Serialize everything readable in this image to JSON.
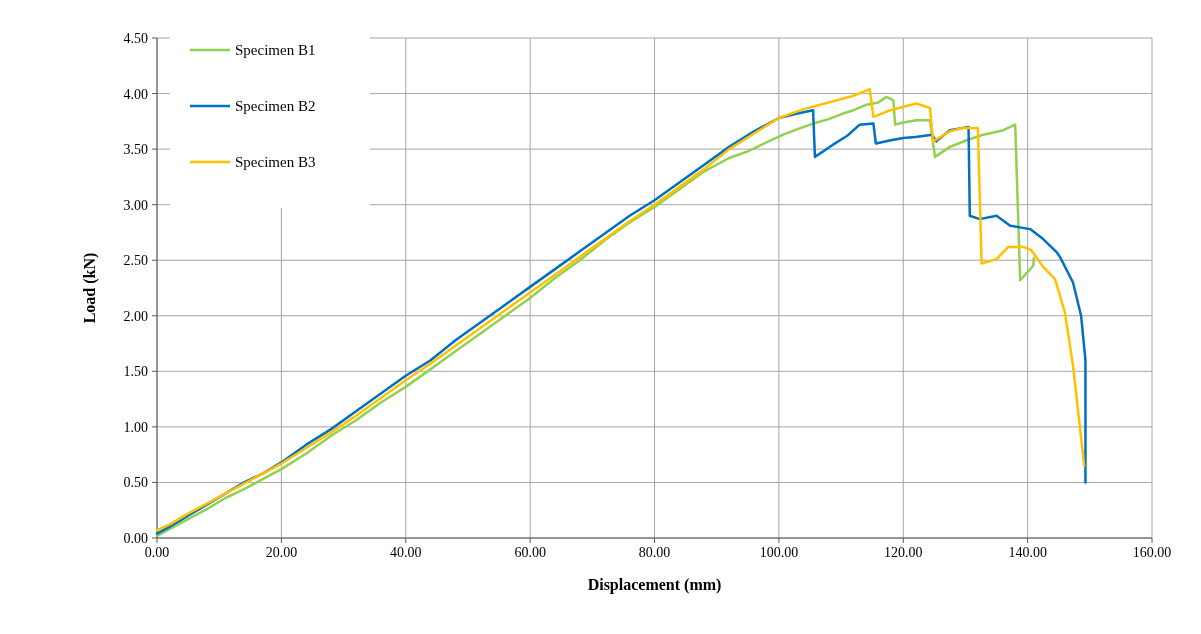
{
  "chart_data": {
    "type": "line",
    "xlabel": "Displacement (mm)",
    "ylabel": "Load (kN)",
    "xlim": [
      0,
      160
    ],
    "ylim": [
      0,
      4.5
    ],
    "xticks": [
      {
        "value": 0,
        "label": "0.00"
      },
      {
        "value": 20,
        "label": "20.00"
      },
      {
        "value": 40,
        "label": "40.00"
      },
      {
        "value": 60,
        "label": "60.00"
      },
      {
        "value": 80,
        "label": "80.00"
      },
      {
        "value": 100,
        "label": "100.00"
      },
      {
        "value": 120,
        "label": "120.00"
      },
      {
        "value": 140,
        "label": "140.00"
      },
      {
        "value": 160,
        "label": "160.00"
      }
    ],
    "yticks": [
      {
        "value": 0,
        "label": "0.00"
      },
      {
        "value": 0.5,
        "label": "0.50"
      },
      {
        "value": 1,
        "label": "1.00"
      },
      {
        "value": 1.5,
        "label": "1.50"
      },
      {
        "value": 2,
        "label": "2.00"
      },
      {
        "value": 2.5,
        "label": "2.50"
      },
      {
        "value": 3,
        "label": "3.00"
      },
      {
        "value": 3.5,
        "label": "3.50"
      },
      {
        "value": 4,
        "label": "4.00"
      },
      {
        "value": 4.5,
        "label": "4.50"
      }
    ],
    "grid": true,
    "legend": "top left",
    "marker": "none",
    "line_style": "solid",
    "series": [
      {
        "name": "Specimen B1",
        "color": "#92d050",
        "x": [
          0,
          2,
          5,
          8,
          11,
          14,
          17,
          20,
          24,
          28,
          32,
          36,
          40,
          44,
          48,
          52,
          56,
          60,
          64,
          68,
          72,
          76,
          80,
          84,
          88,
          92,
          95,
          98,
          100.7,
          103,
          105.5,
          108,
          110.3,
          112,
          114.1,
          116,
          117.3,
          118.4,
          118.7,
          120,
          122.1,
          124.3,
          125.1,
          127.5,
          130.2,
          132.9,
          136.1,
          138,
          138.8,
          140.9,
          141
        ],
        "values": [
          0.02,
          0.08,
          0.17,
          0.26,
          0.36,
          0.44,
          0.53,
          0.62,
          0.76,
          0.92,
          1.06,
          1.22,
          1.36,
          1.52,
          1.68,
          1.84,
          2.0,
          2.16,
          2.34,
          2.5,
          2.68,
          2.84,
          2.98,
          3.14,
          3.3,
          3.42,
          3.48,
          3.56,
          3.63,
          3.68,
          3.73,
          3.77,
          3.82,
          3.85,
          3.9,
          3.92,
          3.97,
          3.94,
          3.72,
          3.74,
          3.76,
          3.76,
          3.43,
          3.52,
          3.58,
          3.63,
          3.67,
          3.72,
          2.32,
          2.45,
          2.52
        ]
      },
      {
        "name": "Specimen B2",
        "color": "#0070c0",
        "x": [
          0,
          2,
          5,
          8,
          11,
          14,
          17,
          20,
          24,
          28,
          32,
          36,
          40,
          44,
          48,
          52,
          56,
          60,
          64,
          68,
          72,
          76,
          80,
          84,
          88,
          92,
          96,
          100,
          103,
          105.5,
          105.8,
          108.7,
          111,
          113,
          115.2,
          115.6,
          118,
          120,
          122,
          124.6,
          125.3,
          127.5,
          130.5,
          130.7,
          132.3,
          135,
          137.2,
          140.4,
          142.5,
          144.7,
          145.2,
          147.3,
          148.6,
          149.3,
          149.3,
          149.3
        ],
        "values": [
          0.04,
          0.1,
          0.2,
          0.3,
          0.4,
          0.5,
          0.58,
          0.68,
          0.84,
          0.98,
          1.14,
          1.3,
          1.46,
          1.6,
          1.78,
          1.94,
          2.1,
          2.26,
          2.42,
          2.58,
          2.74,
          2.9,
          3.04,
          3.2,
          3.36,
          3.52,
          3.66,
          3.78,
          3.82,
          3.85,
          3.43,
          3.54,
          3.62,
          3.72,
          3.73,
          3.55,
          3.58,
          3.6,
          3.61,
          3.63,
          3.57,
          3.67,
          3.7,
          2.9,
          2.87,
          2.9,
          2.81,
          2.78,
          2.69,
          2.57,
          2.53,
          2.3,
          2.0,
          1.6,
          1.25,
          0.5
        ]
      },
      {
        "name": "Specimen B3",
        "color": "#ffc000",
        "x": [
          0,
          2,
          5,
          8,
          11,
          14,
          17,
          20,
          24,
          28,
          32,
          36,
          40,
          44,
          48,
          52,
          56,
          60,
          64,
          68,
          72,
          76,
          80,
          84,
          88,
          92,
          96,
          100,
          104,
          108,
          112,
          114.6,
          115.2,
          117.9,
          122.1,
          124.3,
          124.8,
          127.5,
          129.6,
          132,
          132.6,
          135,
          136.9,
          139.3,
          140.6,
          142.5,
          144.4,
          146,
          147.3,
          149.1
        ],
        "values": [
          0.07,
          0.12,
          0.22,
          0.31,
          0.4,
          0.49,
          0.58,
          0.67,
          0.81,
          0.95,
          1.1,
          1.26,
          1.42,
          1.57,
          1.73,
          1.89,
          2.05,
          2.21,
          2.37,
          2.53,
          2.69,
          2.85,
          3.0,
          3.16,
          3.32,
          3.5,
          3.64,
          3.78,
          3.86,
          3.92,
          3.98,
          4.04,
          3.79,
          3.85,
          3.91,
          3.87,
          3.57,
          3.66,
          3.69,
          3.69,
          2.47,
          2.51,
          2.62,
          2.62,
          2.59,
          2.44,
          2.33,
          2.03,
          1.55,
          0.65
        ]
      }
    ]
  }
}
